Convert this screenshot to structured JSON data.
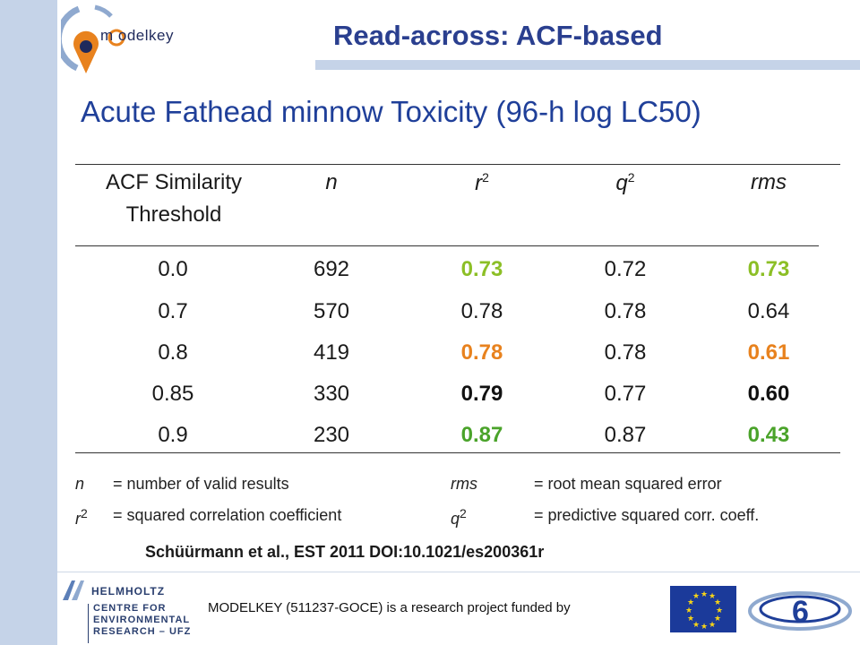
{
  "logo": {
    "text": "m odelkey"
  },
  "title": "Read-across: ACF-based",
  "heading": "Acute Fathead minnow Toxicity (96-h log LC50)",
  "table": {
    "headers": {
      "col0_line1": "ACF Similarity",
      "col0_line2": "Threshold",
      "n": "n",
      "r": "r",
      "q": "q",
      "sup": "2",
      "rms": "rms"
    },
    "rows": [
      {
        "threshold": "0.0",
        "n": "692",
        "r2": "0.73",
        "q2": "0.72",
        "rms": "0.73",
        "highlight": "#8cbf26"
      },
      {
        "threshold": "0.7",
        "n": "570",
        "r2": "0.78",
        "q2": "0.78",
        "rms": "0.64",
        "highlight": "#1a1a1a"
      },
      {
        "threshold": "0.8",
        "n": "419",
        "r2": "0.78",
        "q2": "0.78",
        "rms": "0.61",
        "highlight": "#e8821e"
      },
      {
        "threshold": "0.85",
        "n": "330",
        "r2": "0.79",
        "q2": "0.77",
        "rms": "0.60",
        "highlight": "#111111"
      },
      {
        "threshold": "0.9",
        "n": "230",
        "r2": "0.87",
        "q2": "0.87",
        "rms": "0.43",
        "highlight": "#4aa32a"
      }
    ]
  },
  "legend": {
    "n_sym": "n",
    "n_def": "= number of valid results",
    "r_sym": "r",
    "r_def": "= squared correlation coefficient",
    "rms_sym": "rms",
    "rms_def": "= root mean squared error",
    "q_sym": "q",
    "q_def": "= predictive squared corr. coeff.",
    "sup": "2"
  },
  "citation": "Schüürmann et al., EST 2011  DOI:10.1021/es200361r",
  "footer": {
    "funding": "MODELKEY (511237-GOCE) is a research project funded by",
    "helmholtz_line1": "HELMHOLTZ",
    "helmholtz_line2": "CENTRE FOR",
    "helmholtz_line3": "ENVIRONMENTAL",
    "helmholtz_line4": "RESEARCH – UFZ"
  },
  "colors": {
    "title": "#2a3f8f",
    "heading": "#1f3f99",
    "sidebar": "#c5d3e8"
  }
}
